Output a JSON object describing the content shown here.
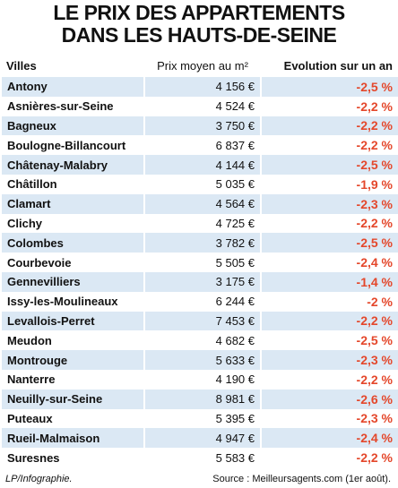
{
  "header": {
    "title_line1": "LE PRIX DES APPARTEMENTS",
    "title_line2": "DANS LES HAUTS-DE-SEINE"
  },
  "table": {
    "columns": [
      "Villes",
      "Prix moyen au m²",
      "Evolution sur un an"
    ],
    "rows": [
      [
        "Antony",
        "4 156 €",
        "-2,5 %"
      ],
      [
        "Asnières-sur-Seine",
        "4 524 €",
        "-2,2 %"
      ],
      [
        "Bagneux",
        "3 750 €",
        "-2,2 %"
      ],
      [
        "Boulogne-Billancourt",
        "6 837 €",
        "-2,2 %"
      ],
      [
        "Châtenay-Malabry",
        "4 144 €",
        "-2,5 %"
      ],
      [
        "Châtillon",
        "5 035 €",
        "-1,9 %"
      ],
      [
        "Clamart",
        "4 564 €",
        "-2,3 %"
      ],
      [
        "Clichy",
        "4 725 €",
        "-2,2 %"
      ],
      [
        "Colombes",
        "3 782 €",
        "-2,5 %"
      ],
      [
        "Courbevoie",
        "5 505 €",
        "-2,4 %"
      ],
      [
        "Gennevilliers",
        "3 175 €",
        "-1,4 %"
      ],
      [
        "Issy-les-Moulineaux",
        "6 244 €",
        "-2 %"
      ],
      [
        "Levallois-Perret",
        "7 453 €",
        "-2,2 %"
      ],
      [
        "Meudon",
        "4 682 €",
        "-2,5 %"
      ],
      [
        "Montrouge",
        "5 633 €",
        "-2,3 %"
      ],
      [
        "Nanterre",
        "4 190 €",
        "-2,2 %"
      ],
      [
        "Neuilly-sur-Seine",
        "8 981 €",
        "-2,6 %"
      ],
      [
        "Puteaux",
        "5 395 €",
        "-2,3 %"
      ],
      [
        "Rueil-Malmaison",
        "4 947 €",
        "-2,4 %"
      ],
      [
        "Suresnes",
        "5 583 €",
        "-2,2 %"
      ]
    ]
  },
  "footer": {
    "credit": "LP/Infographie.",
    "source": "Source : Meilleursagents.com (1er août)."
  }
}
